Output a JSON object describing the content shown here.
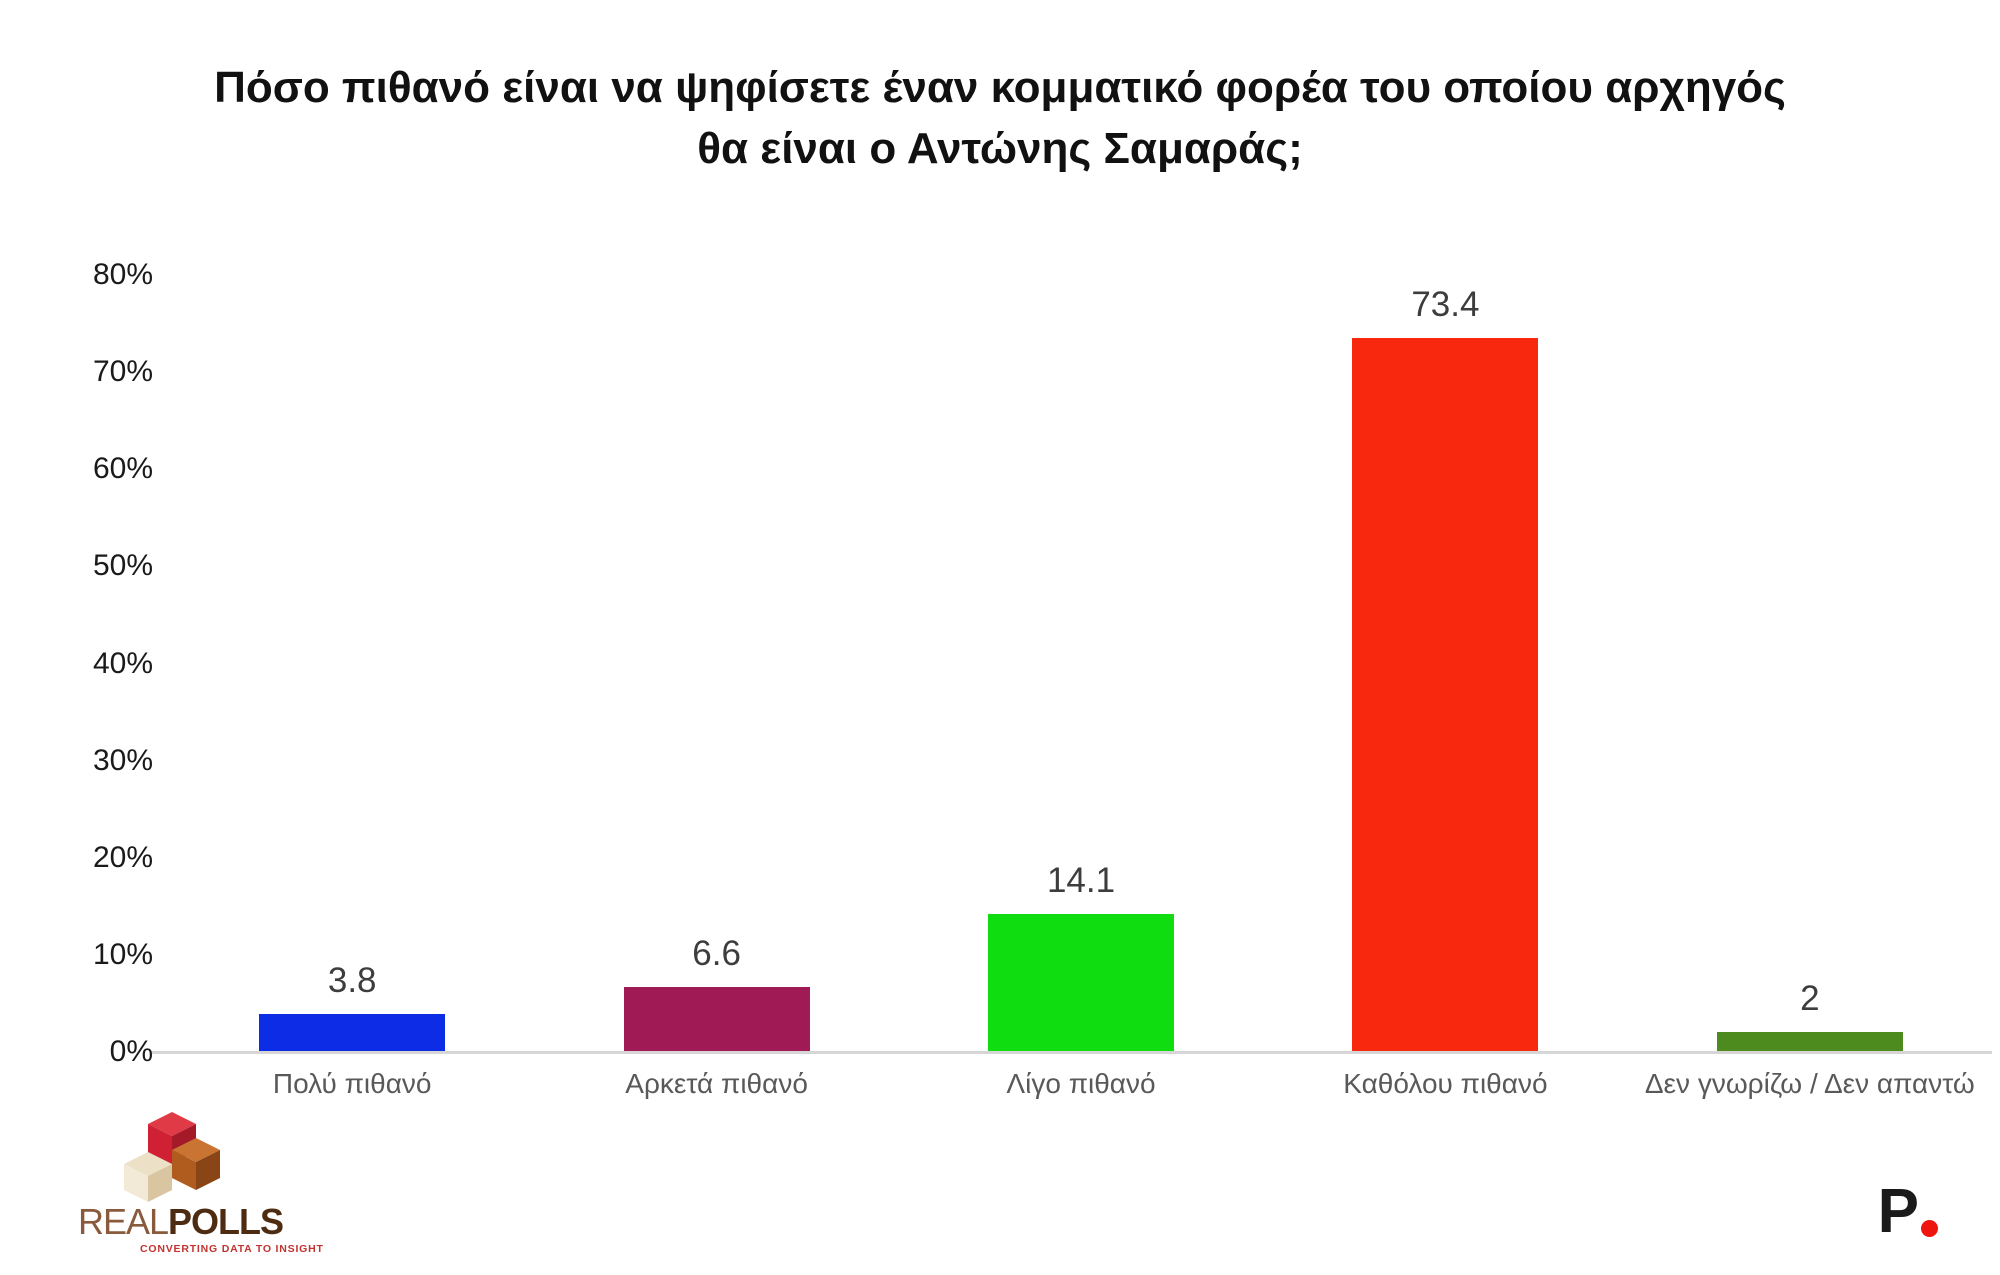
{
  "title": {
    "lines": [
      "Πόσο πιθανό είναι να ψηφίσετε έναν κομματικό φορέα του οποίου αρχηγός",
      "θα είναι ο Αντώνης Σαμαράς;"
    ]
  },
  "chart_data": {
    "type": "bar",
    "title": "Πόσο πιθανό είναι να ψηφίσετε έναν κομματικό φορέα του οποίου αρχηγός θα είναι ο Αντώνης Σαμαράς;",
    "categories": [
      "Πολύ πιθανό",
      "Αρκετά πιθανό",
      "Λίγο πιθανό",
      "Καθόλου πιθανό",
      "Δεν γνωρίζω / Δεν απαντώ"
    ],
    "values": [
      3.8,
      6.6,
      14.1,
      73.4,
      2
    ],
    "data_labels": [
      "3.8",
      "6.6",
      "14.1",
      "73.4",
      "2"
    ],
    "bar_colors": [
      "#0d2ce6",
      "#a01a56",
      "#10dd10",
      "#f8280e",
      "#4e8b1e"
    ],
    "xlabel": "",
    "ylabel": "",
    "ylim": [
      0,
      80
    ],
    "ytick_labels": [
      "0%",
      "10%",
      "20%",
      "30%",
      "40%",
      "50%",
      "60%",
      "70%",
      "80%"
    ],
    "grid": false,
    "legend": "none"
  },
  "footer": {
    "realpolls": {
      "brand_light": "REAL",
      "brand_bold": "POLLS",
      "tagline": "CONVERTING DATA TO INSIGHT"
    },
    "p_logo": {
      "letter": "P"
    }
  },
  "colors": {
    "baseline": "#d6d6d6",
    "title_text": "#111111",
    "value_label_text": "#3d3d3d",
    "category_label_text": "#595959",
    "p_dot_red": "#ee1410",
    "brand_light_brown": "#8a5a3c",
    "brand_dark_brown": "#4e2c12",
    "tagline_red": "#c23331",
    "cube_red": "#cf2133",
    "cube_orange": "#b05c1e",
    "cube_cream": "#ece1c6"
  }
}
